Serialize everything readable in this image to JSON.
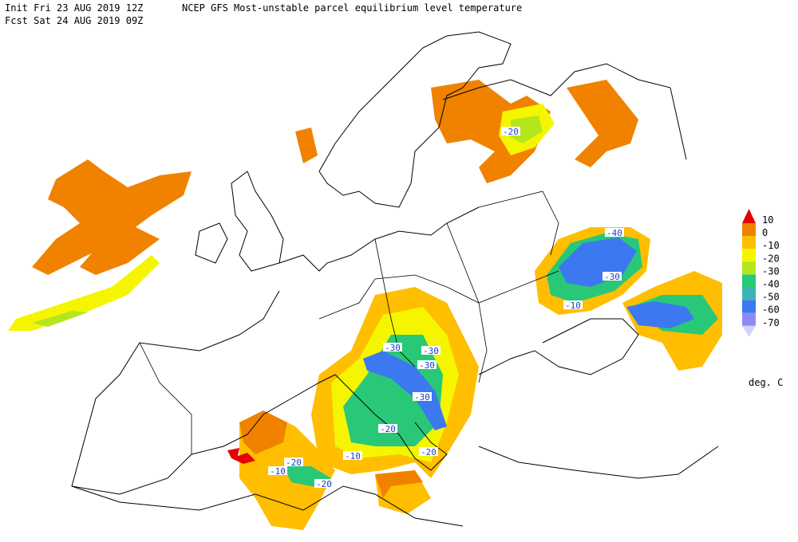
{
  "header": {
    "init": "Init  Fri 23 AUG 2019 12Z",
    "title": "NCEP GFS Most-unstable parcel equilibrium level temperature",
    "fcst": "Fcst Sat 24 AUG 2019 09Z"
  },
  "legend": {
    "labels": [
      "10",
      "0",
      "-10",
      "-20",
      "-30",
      "-40",
      "-50",
      "-60",
      "-70"
    ],
    "colors": [
      "#e60000",
      "#f08200",
      "#ffbe00",
      "#f5f500",
      "#b4e61e",
      "#28c878",
      "#3cb4b4",
      "#3c78f0",
      "#8c8cf0",
      "#d2d2fa"
    ],
    "units": "deg. C"
  },
  "map": {
    "contour_labels": [
      "-20",
      "-40",
      "-30",
      "-10",
      "-30",
      "-30",
      "-30",
      "-30",
      "-20",
      "-20",
      "-10",
      "-20",
      "-10",
      "-20"
    ]
  }
}
